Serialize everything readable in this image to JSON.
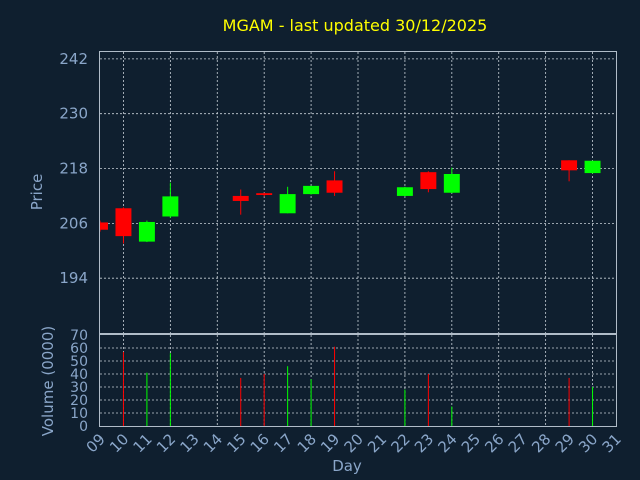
{
  "chart_data": {
    "type": "candlestick",
    "title": "MGAM - last updated 30/12/2025",
    "xlabel": "Day",
    "ylabel": "Price",
    "volume_label": "Volume (0000)",
    "x_ticks": [
      "09",
      "10",
      "11",
      "12",
      "13",
      "14",
      "15",
      "16",
      "17",
      "18",
      "19",
      "20",
      "21",
      "22",
      "23",
      "24",
      "25",
      "26",
      "27",
      "28",
      "29",
      "30",
      "31"
    ],
    "price_ticks": [
      194,
      206,
      218,
      230,
      242
    ],
    "price_range": [
      182,
      243.5
    ],
    "volume_ticks": [
      0,
      10,
      20,
      30,
      40,
      50,
      60,
      70
    ],
    "volume_range": [
      0,
      70
    ],
    "grid": true,
    "colors": {
      "up": "#00ff00",
      "down": "#ff0000",
      "title": "#ffff00",
      "text": "#8aa6c9",
      "background": "#0f1f2f"
    },
    "candles": [
      {
        "day": "09",
        "open": 206.2,
        "high": 206.6,
        "low": 204.2,
        "close": 204.6,
        "volume": 0
      },
      {
        "day": "10",
        "open": 209.3,
        "high": 209.5,
        "low": 201.6,
        "close": 203.2,
        "volume": 57
      },
      {
        "day": "11",
        "open": 202.0,
        "high": 206.6,
        "low": 201.9,
        "close": 206.3,
        "volume": 41
      },
      {
        "day": "12",
        "open": 207.5,
        "high": 214.9,
        "low": 207.2,
        "close": 211.9,
        "volume": 56
      },
      {
        "day": "15",
        "open": 212.0,
        "high": 213.4,
        "low": 207.9,
        "close": 210.9,
        "volume": 37
      },
      {
        "day": "16",
        "open": 212.6,
        "high": 212.7,
        "low": 211.9,
        "close": 212.2,
        "volume": 40
      },
      {
        "day": "17",
        "open": 208.2,
        "high": 214.0,
        "low": 208.2,
        "close": 212.4,
        "volume": 46
      },
      {
        "day": "18",
        "open": 212.4,
        "high": 214.2,
        "low": 212.3,
        "close": 214.2,
        "volume": 36
      },
      {
        "day": "19",
        "open": 215.4,
        "high": 217.4,
        "low": 212.0,
        "close": 212.7,
        "volume": 61
      },
      {
        "day": "22",
        "open": 212.0,
        "high": 214.0,
        "low": 211.9,
        "close": 213.9,
        "volume": 28
      },
      {
        "day": "23",
        "open": 217.2,
        "high": 217.4,
        "low": 212.8,
        "close": 213.5,
        "volume": 40
      },
      {
        "day": "24",
        "open": 212.7,
        "high": 218.2,
        "low": 212.6,
        "close": 216.8,
        "volume": 15
      },
      {
        "day": "29",
        "open": 219.8,
        "high": 219.8,
        "low": 215.2,
        "close": 217.6,
        "volume": 37
      },
      {
        "day": "30",
        "open": 217.0,
        "high": 219.7,
        "low": 216.9,
        "close": 219.7,
        "volume": 30
      }
    ]
  }
}
